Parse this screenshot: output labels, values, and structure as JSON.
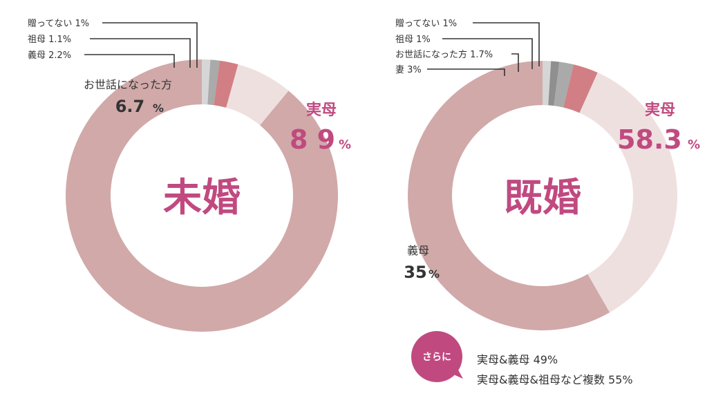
{
  "colors": {
    "accent": "#c04a80",
    "dark": "#333333",
    "white": "#ffffff"
  },
  "chart_data": [
    {
      "type": "pie",
      "title": "未婚",
      "slices": [
        {
          "name": "実母",
          "value": 89,
          "label": "実母",
          "value_text": "8 9",
          "unit": "%",
          "color": "#d1a9a9"
        },
        {
          "name": "お世話になった方",
          "value": 6.7,
          "label": "お世話になった方",
          "value_text": "6.7",
          "unit": "%",
          "color": "#efe0e0"
        },
        {
          "name": "義母",
          "value": 2.2,
          "label": "義母 2.2%",
          "color": "#d17f84"
        },
        {
          "name": "祖母",
          "value": 1.1,
          "label": "祖母 1.1%",
          "color": "#aaaaaa"
        },
        {
          "name": "贈ってない",
          "value": 1,
          "label": "贈ってない 1%",
          "color": "#d6d6d6"
        }
      ]
    },
    {
      "type": "pie",
      "title": "既婚",
      "slices": [
        {
          "name": "実母",
          "value": 58.3,
          "label": "実母",
          "value_text": "58.3",
          "unit": "%",
          "color": "#d1a9a9"
        },
        {
          "name": "義母",
          "value": 35,
          "label": "義母",
          "value_text": "35",
          "unit": "%",
          "color": "#efe0e0"
        },
        {
          "name": "妻",
          "value": 3,
          "label": "妻 3%",
          "color": "#d17f84"
        },
        {
          "name": "お世話になった方",
          "value": 1.7,
          "label": "お世話になった方 1.7%",
          "color": "#aaaaaa"
        },
        {
          "name": "祖母",
          "value": 1,
          "label": "祖母 1%",
          "color": "#8f8f8f"
        },
        {
          "name": "贈ってない",
          "value": 1,
          "label": "贈ってない 1%",
          "color": "#d6d6d6"
        }
      ]
    }
  ],
  "note": {
    "bubble": "さらに",
    "lines": [
      "実母&義母 49%",
      "実母&義母&祖母など複数 55%"
    ]
  }
}
